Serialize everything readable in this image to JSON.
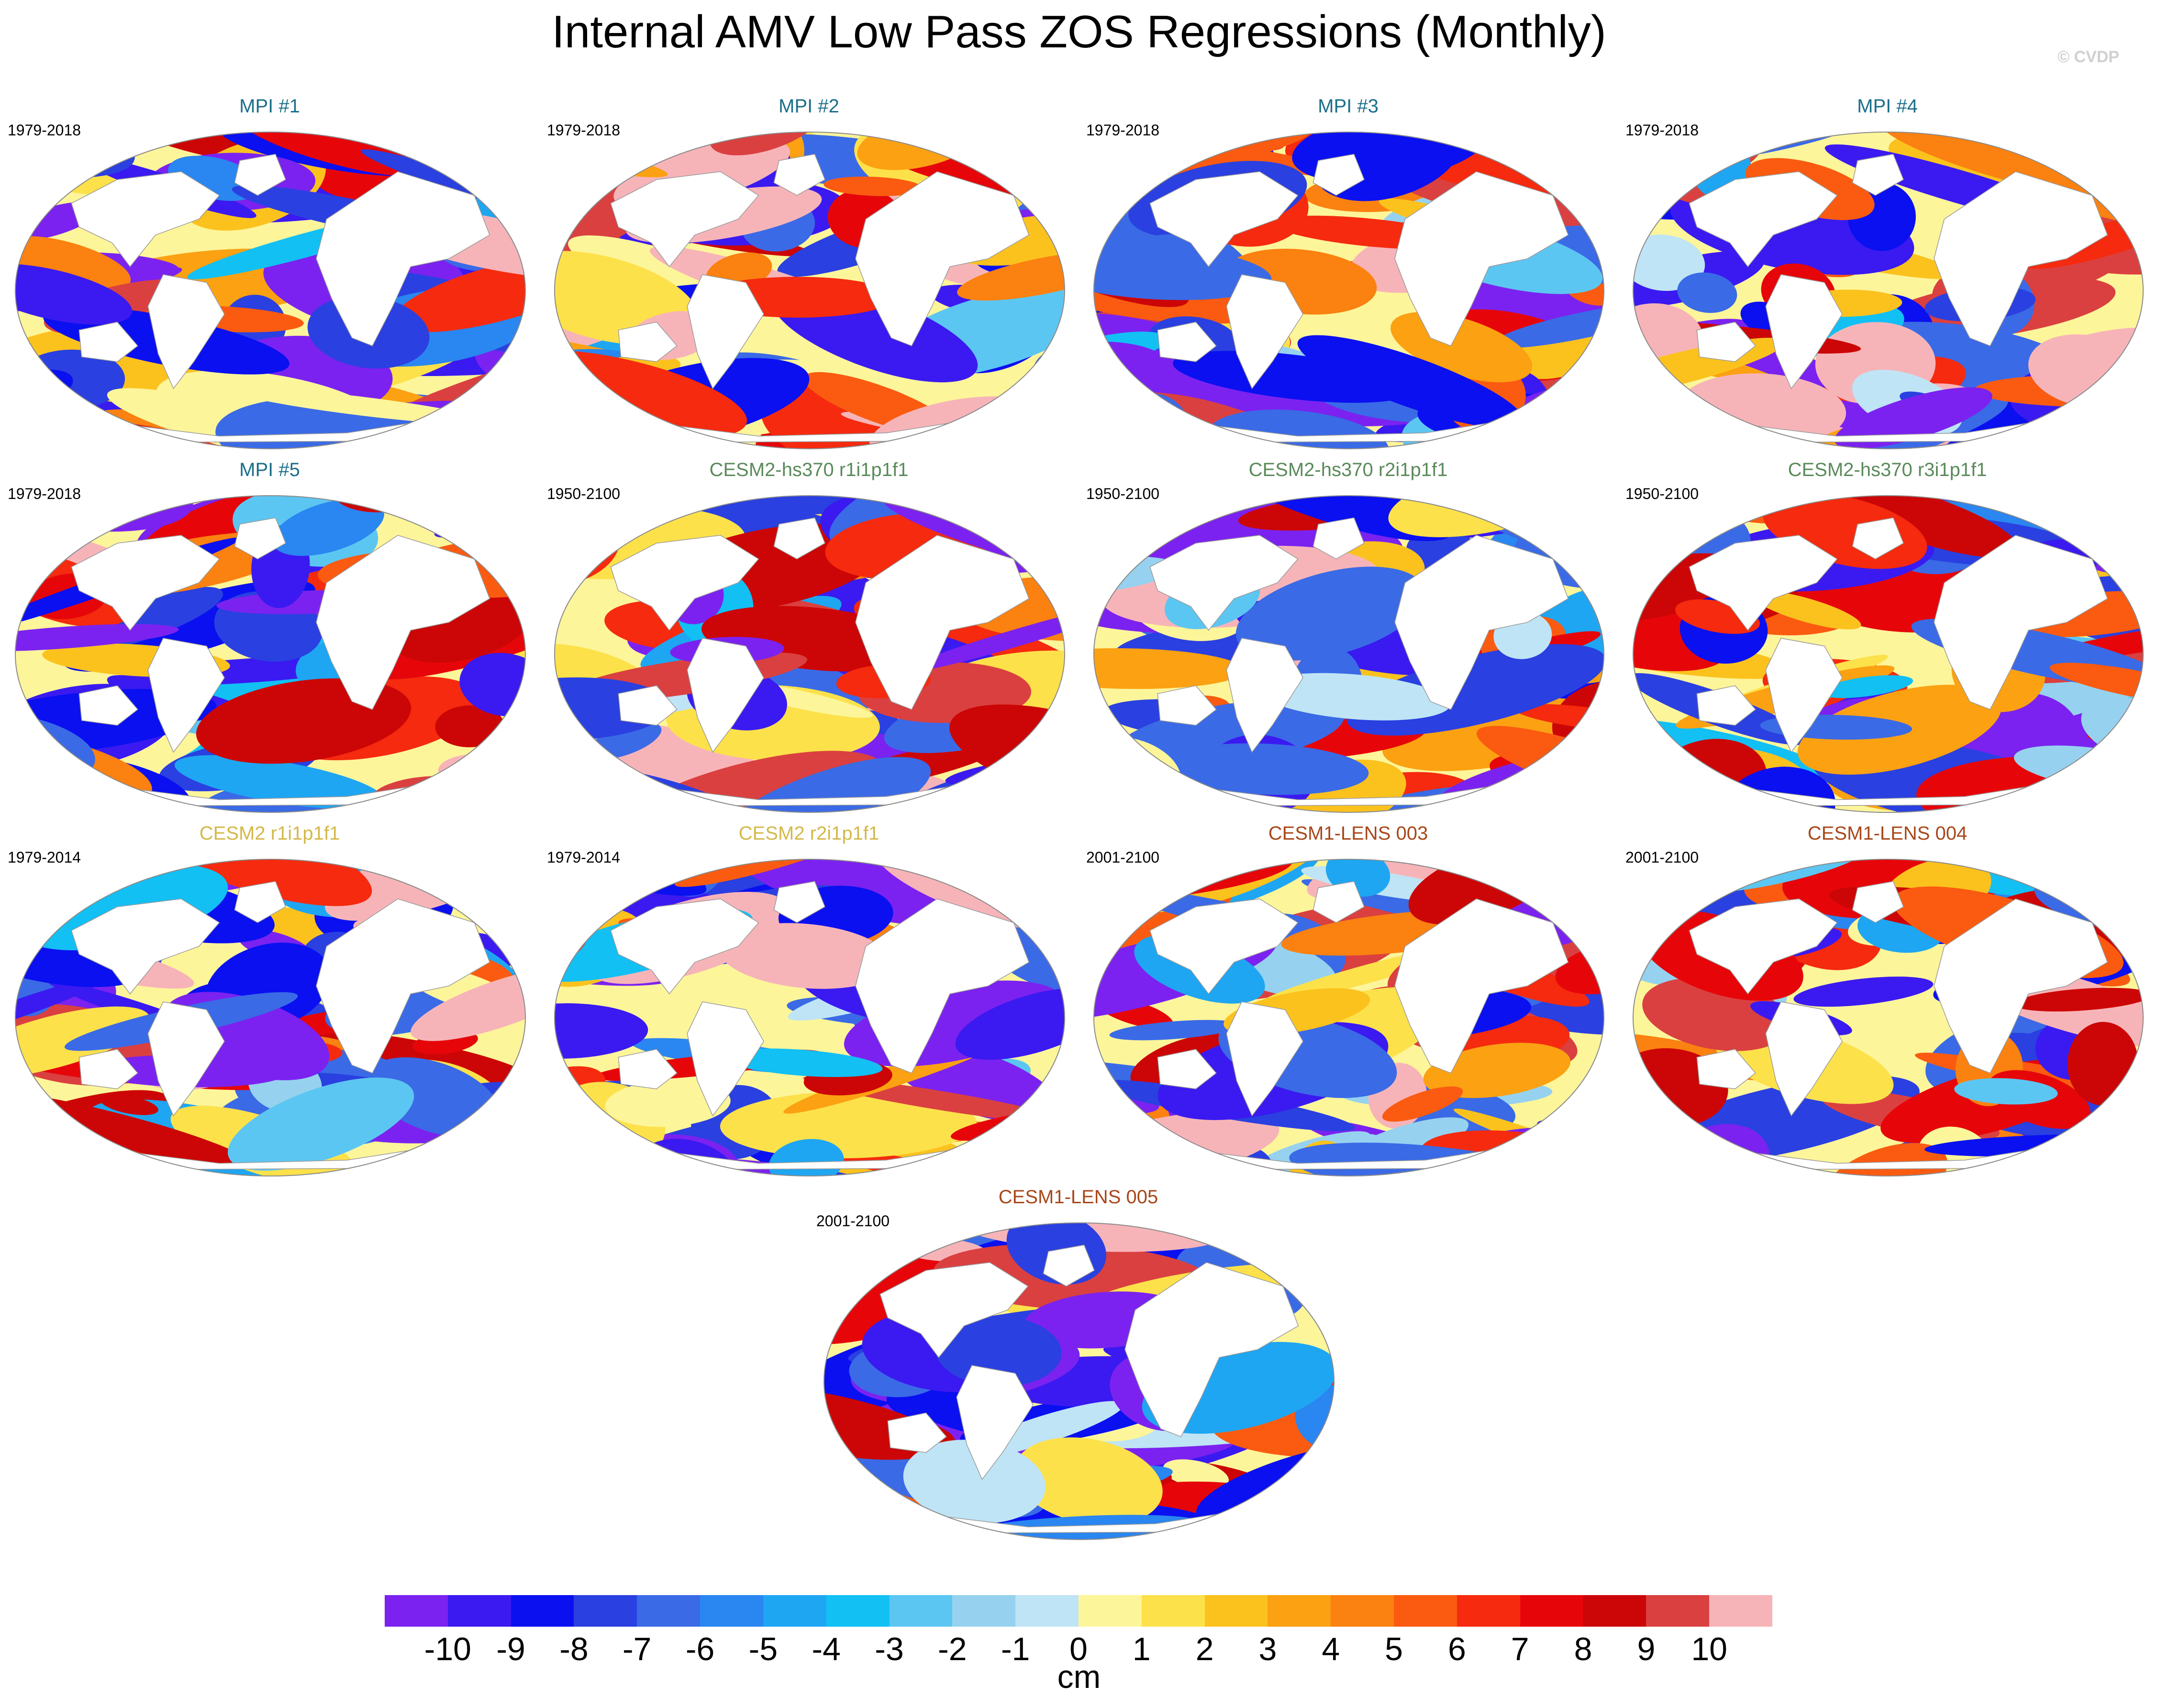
{
  "title": "Internal AMV Low Pass ZOS Regressions (Monthly)",
  "watermark": "© CVDP",
  "panels": [
    {
      "title": "MPI #1",
      "period": "1979-2018",
      "title_color": "#1a6e8a",
      "pattern": 0
    },
    {
      "title": "MPI #2",
      "period": "1979-2018",
      "title_color": "#1a6e8a",
      "pattern": 1
    },
    {
      "title": "MPI #3",
      "period": "1979-2018",
      "title_color": "#1a6e8a",
      "pattern": 2
    },
    {
      "title": "MPI #4",
      "period": "1979-2018",
      "title_color": "#1a6e8a",
      "pattern": 3
    },
    {
      "title": "MPI #5",
      "period": "1979-2018",
      "title_color": "#1a6e8a",
      "pattern": 4
    },
    {
      "title": "CESM2-hs370 r1i1p1f1",
      "period": "1950-2100",
      "title_color": "#5a8a5a",
      "pattern": 5
    },
    {
      "title": "CESM2-hs370 r2i1p1f1",
      "period": "1950-2100",
      "title_color": "#5a8a5a",
      "pattern": 6
    },
    {
      "title": "CESM2-hs370 r3i1p1f1",
      "period": "1950-2100",
      "title_color": "#5a8a5a",
      "pattern": 7
    },
    {
      "title": "CESM2 r1i1p1f1",
      "period": "1979-2014",
      "title_color": "#d4b84a",
      "pattern": 8
    },
    {
      "title": "CESM2 r2i1p1f1",
      "period": "1979-2014",
      "title_color": "#d4b84a",
      "pattern": 9
    },
    {
      "title": "CESM1-LENS 003",
      "period": "2001-2100",
      "title_color": "#a8471a",
      "pattern": 10
    },
    {
      "title": "CESM1-LENS 004",
      "period": "2001-2100",
      "title_color": "#a8471a",
      "pattern": 11
    },
    {
      "title": "CESM1-LENS 005",
      "period": "2001-2100",
      "title_color": "#a8471a",
      "pattern": 12
    }
  ],
  "colorbar": {
    "unit": "cm",
    "labels": [
      "-10",
      "-9",
      "-8",
      "-7",
      "-6",
      "-5",
      "-4",
      "-3",
      "-2",
      "-1",
      "0",
      "1",
      "2",
      "3",
      "4",
      "5",
      "6",
      "7",
      "8",
      "9",
      "10"
    ],
    "colors": [
      "#7b22f0",
      "#3a1af0",
      "#0a10f0",
      "#2a40e0",
      "#3a6ae6",
      "#2a86f0",
      "#1ea6f2",
      "#12c0f4",
      "#5cc6f2",
      "#96d2ef",
      "#bfe4f5",
      "#fdf59a",
      "#fde14a",
      "#fbc21e",
      "#fba112",
      "#fb8110",
      "#fa5b10",
      "#f52a0e",
      "#e6060a",
      "#cc0606",
      "#da4040",
      "#f7b4b8"
    ]
  }
}
